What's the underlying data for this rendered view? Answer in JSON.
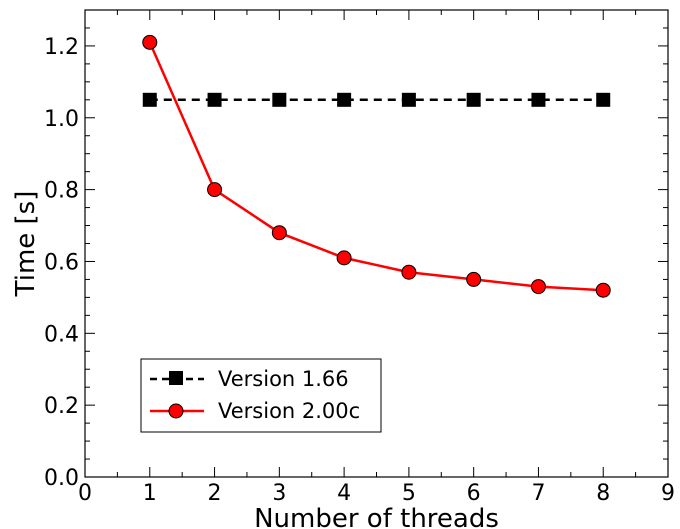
{
  "chart_data": {
    "type": "line",
    "xlabel": "Number of threads",
    "ylabel": "Time [s]",
    "xlim": [
      0,
      9
    ],
    "ylim": [
      0.0,
      1.3
    ],
    "xticks": [
      0,
      1,
      2,
      3,
      4,
      5,
      6,
      7,
      8,
      9
    ],
    "yticks": [
      0.0,
      0.2,
      0.4,
      0.6,
      0.8,
      1.0,
      1.2
    ],
    "xtick_labels": [
      "0",
      "1",
      "2",
      "3",
      "4",
      "5",
      "6",
      "7",
      "8",
      "9"
    ],
    "ytick_labels": [
      "0.0",
      "0.2",
      "0.4",
      "0.6",
      "0.8",
      "1.0",
      "1.2"
    ],
    "grid": false,
    "legend_position": "lower-left",
    "x": [
      1,
      2,
      3,
      4,
      5,
      6,
      7,
      8
    ],
    "series": [
      {
        "name": "Version 1.66",
        "values": [
          1.05,
          1.05,
          1.05,
          1.05,
          1.05,
          1.05,
          1.05,
          1.05
        ],
        "color": "#000000",
        "marker": "square",
        "line_style": "dashed"
      },
      {
        "name": "Version 2.00c",
        "values": [
          1.21,
          0.8,
          0.68,
          0.61,
          0.57,
          0.55,
          0.53,
          0.52
        ],
        "color": "#ff0000",
        "marker": "circle",
        "line_style": "solid"
      }
    ]
  }
}
